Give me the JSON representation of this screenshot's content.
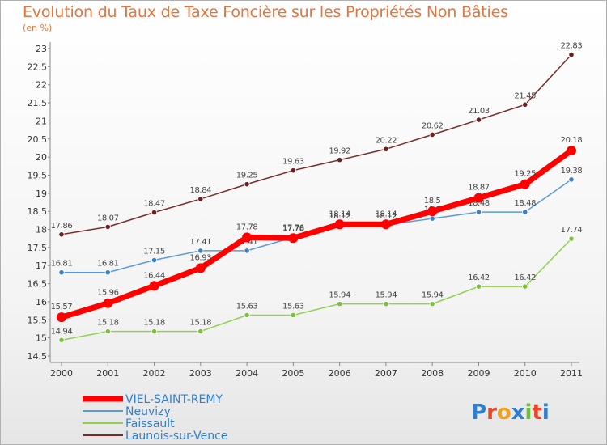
{
  "title": "Evolution du Taux de Taxe Foncière sur les Propriétés Non Bâties",
  "unit": "(en %)",
  "logo": {
    "text": "Proxiti",
    "colors": [
      "#2f7fd0",
      "#e8462b",
      "#f0a020",
      "#2f7fd0",
      "#6cbd3c",
      "#e8462b",
      "#2f7fd0"
    ]
  },
  "chart_data": {
    "type": "line",
    "x": [
      "2000",
      "2001",
      "2002",
      "2003",
      "2004",
      "2005",
      "2006",
      "2007",
      "2008",
      "2009",
      "2010",
      "2011"
    ],
    "ylim": [
      14.5,
      23
    ],
    "yticks": [
      "14.5",
      "15",
      "15.5",
      "16",
      "16.5",
      "17",
      "17.5",
      "18",
      "18.5",
      "19",
      "19.5",
      "20",
      "20.5",
      "21",
      "21.5",
      "22",
      "22.5",
      "23"
    ],
    "grid": false,
    "legend_position": "bottom-left",
    "series": [
      {
        "name": "Launois-sur-Vence",
        "color": "#7a2a2a",
        "point_color": "#6b1f22",
        "width": 1.5,
        "values": [
          17.86,
          18.07,
          18.47,
          18.84,
          19.25,
          19.63,
          19.92,
          20.22,
          20.62,
          21.03,
          21.45,
          22.83
        ],
        "labels": [
          "17.86",
          "18.07",
          "18.47",
          "18.84",
          "19.25",
          "19.63",
          "19.92",
          "20.22",
          "20.62",
          "21.03",
          "21.45",
          "22.83"
        ]
      },
      {
        "name": "Neuvizy",
        "color": "#5b9bd5",
        "point_color": "#3e7fc2",
        "width": 1.5,
        "values": [
          16.81,
          16.81,
          17.15,
          17.41,
          17.41,
          17.78,
          18.12,
          18.12,
          18.3,
          18.48,
          18.48,
          19.38
        ],
        "labels": [
          "16.81",
          "16.81",
          "17.15",
          "17.41",
          "17.41",
          "17.78",
          "18.12",
          "18.12",
          "18.3",
          "18.48",
          "18.48",
          "19.38"
        ]
      },
      {
        "name": "Faissault",
        "color": "#92d050",
        "point_color": "#7cc13a",
        "width": 1.5,
        "values": [
          14.94,
          15.18,
          15.18,
          15.18,
          15.63,
          15.63,
          15.94,
          15.94,
          15.94,
          16.42,
          16.42,
          17.74
        ],
        "labels": [
          "14.94",
          "15.18",
          "15.18",
          "15.18",
          "15.63",
          "15.63",
          "15.94",
          "15.94",
          "15.94",
          "16.42",
          "16.42",
          "17.74"
        ]
      },
      {
        "name": "VIEL-SAINT-REMY",
        "color": "#ff0000",
        "point_color": "#ff0000",
        "width": 7,
        "values": [
          15.57,
          15.96,
          16.44,
          16.93,
          17.78,
          17.76,
          18.14,
          18.14,
          18.5,
          18.87,
          19.25,
          20.18
        ],
        "labels": [
          "15.57",
          "15.96",
          "16.44",
          "16.93",
          "17.78",
          "17.76",
          "18.14",
          "18.14",
          "18.5",
          "18.87",
          "19.25",
          "20.18"
        ]
      }
    ],
    "legend": [
      {
        "name": "VIEL-SAINT-REMY",
        "color": "#ff0000",
        "width": 7
      },
      {
        "name": "Neuvizy",
        "color": "#5b9bd5",
        "width": 2
      },
      {
        "name": "Faissault",
        "color": "#92d050",
        "width": 2
      },
      {
        "name": "Launois-sur-Vence",
        "color": "#7a2a2a",
        "width": 2
      }
    ]
  }
}
